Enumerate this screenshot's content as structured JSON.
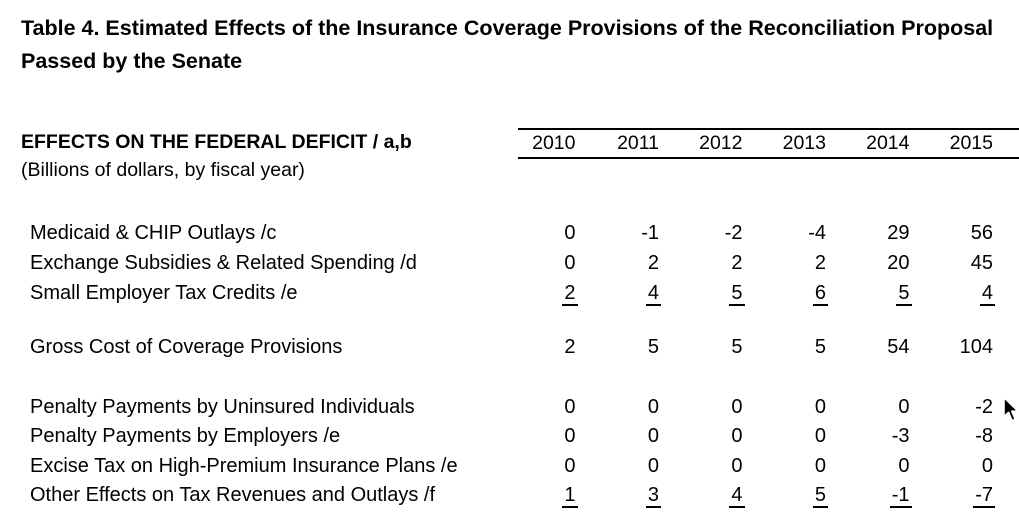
{
  "title": {
    "line1": "Table 4. Estimated Effects of the Insurance Coverage Provisions of the Reconciliation Proposal",
    "line2": "Passed by the Senate"
  },
  "table": {
    "header": {
      "label": "EFFECTS ON THE FEDERAL DEFICIT / a,b",
      "sublabel": "(Billions of dollars, by fiscal year)",
      "years": [
        "2010",
        "2011",
        "2012",
        "2013",
        "2014",
        "2015"
      ]
    },
    "rows": [
      {
        "label": "Medicaid & CHIP Outlays /c",
        "values": [
          "0",
          "-1",
          "-2",
          "-4",
          "29",
          "56"
        ],
        "underline": false
      },
      {
        "label": "Exchange Subsidies & Related Spending /d",
        "values": [
          "0",
          "2",
          "2",
          "2",
          "20",
          "45"
        ],
        "underline": false
      },
      {
        "label": "Small Employer Tax Credits /e",
        "values": [
          "2",
          "4",
          "5",
          "6",
          "5",
          "4"
        ],
        "underline": true
      },
      {
        "label": "Gross Cost of Coverage Provisions",
        "values": [
          "2",
          "5",
          "5",
          "5",
          "54",
          "104"
        ],
        "underline": false
      },
      {
        "label": "Penalty Payments by Uninsured Individuals",
        "values": [
          "0",
          "0",
          "0",
          "0",
          "0",
          "-2"
        ],
        "underline": false
      },
      {
        "label": "Penalty Payments by Employers /e",
        "values": [
          "0",
          "0",
          "0",
          "0",
          "-3",
          "-8"
        ],
        "underline": false
      },
      {
        "label": "Excise Tax on High-Premium Insurance Plans /e",
        "values": [
          "0",
          "0",
          "0",
          "0",
          "0",
          "0"
        ],
        "underline": false
      },
      {
        "label": "Other Effects on Tax Revenues and Outlays /f",
        "values": [
          "1",
          "3",
          "4",
          "5",
          "-1",
          "-7"
        ],
        "underline": true
      }
    ]
  },
  "colors": {
    "text": "#000000",
    "background": "#ffffff",
    "rule": "#000000"
  },
  "cursor": {
    "icon": "arrow-pointer"
  }
}
